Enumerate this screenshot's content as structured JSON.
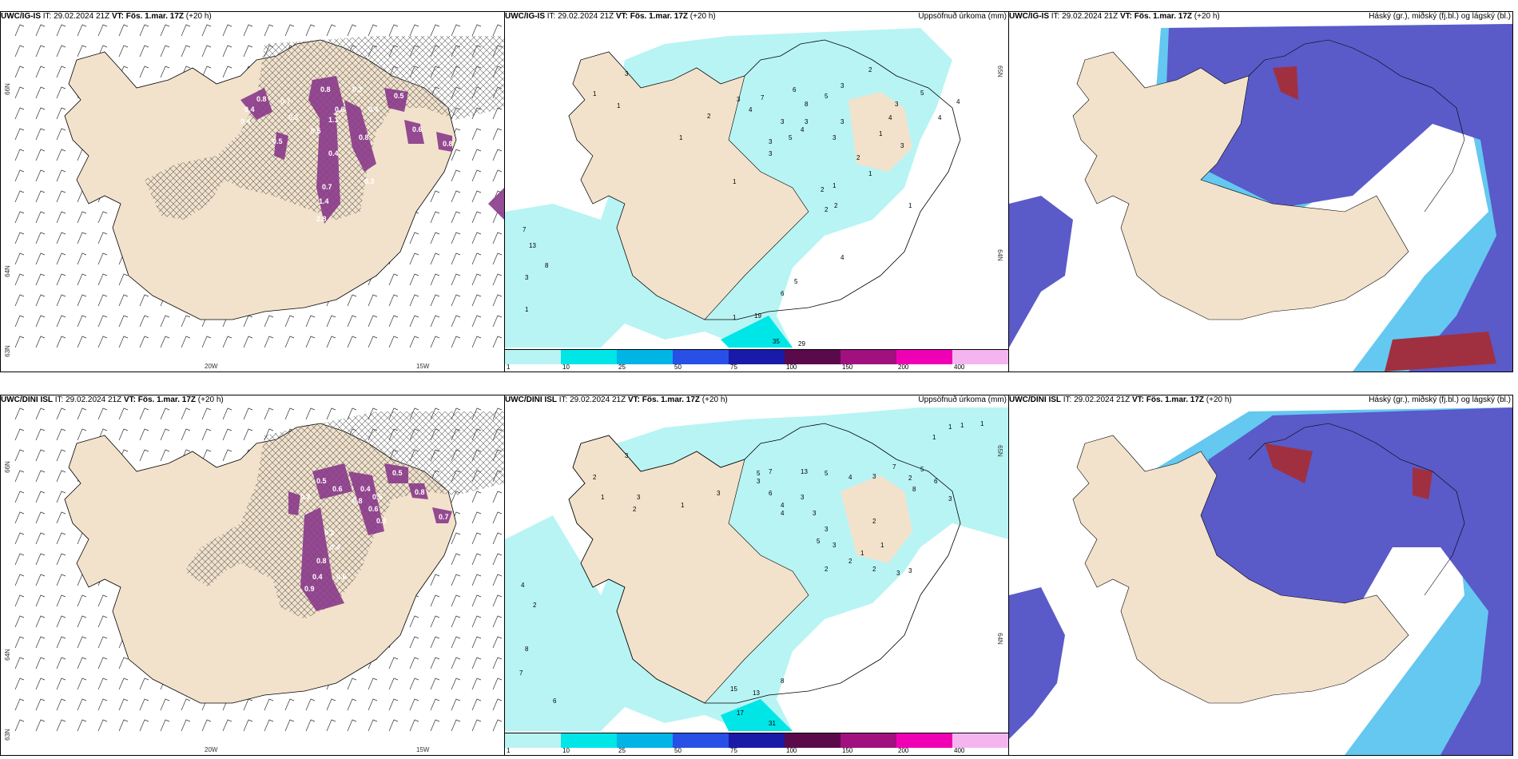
{
  "rows": [
    {
      "model": "UWC/IG-IS",
      "it_label": "IT:",
      "it_value": "29.02.2024 21Z",
      "vt_label": "VT:",
      "vt_value": "Fös. 1.mar. 17Z",
      "lead": "(+20 h)"
    },
    {
      "model": "UWC/DINI ISL",
      "it_label": "IT:",
      "it_value": "29.02.2024 21Z",
      "vt_label": "VT:",
      "vt_value": "Fös. 1.mar. 17Z",
      "lead": "(+20 h)"
    }
  ],
  "precip_title": "Uppsöfnuð úrkoma (mm)",
  "cloud_title": "Háský (gr.), miðský (fj.bl.) og lágský (bl.)",
  "axis_labels": {
    "lat_66": "66N",
    "lat_64": "64N",
    "lat_63": "63N",
    "lon_20": "20W",
    "lon_15": "15W",
    "lat_65_mid": "65N",
    "lat_64_mid": "64N"
  },
  "colorbar": {
    "labels": [
      "1",
      "10",
      "25",
      "50",
      "75",
      "100",
      "150",
      "200",
      "400"
    ],
    "colors": [
      "#b8f4f4",
      "#00e6e6",
      "#00b4e6",
      "#2850e6",
      "#1a1aa8",
      "#5a0a4a",
      "#a0107e",
      "#f000b4",
      "#f4b4f0"
    ]
  },
  "colors": {
    "land": "#f2e2cc",
    "precip_light": "#b8f4f4",
    "precip_mid": "#00e6e6",
    "cloud_high": "#5a5ac8",
    "cloud_mid": "#64c8f0",
    "cloud_low_red": "#a03040",
    "intense": "#8a3a8a"
  },
  "precip_numbers_top": [
    "3",
    "1",
    "1",
    "1",
    "2",
    "3",
    "4",
    "7",
    "6",
    "8",
    "5",
    "2",
    "3",
    "3",
    "5",
    "4",
    "4",
    "3",
    "3",
    "3",
    "3",
    "5",
    "4",
    "3",
    "1",
    "3",
    "3",
    "4",
    "2",
    "2",
    "1",
    "7",
    "13",
    "8",
    "3",
    "1",
    "5",
    "6",
    "19",
    "35",
    "29",
    "1",
    "2",
    "2",
    "1",
    "4",
    "1",
    "1"
  ],
  "precip_numbers_bottom": [
    "3",
    "2",
    "1",
    "2",
    "3",
    "1",
    "3",
    "3",
    "5",
    "7",
    "13",
    "5",
    "4",
    "3",
    "7",
    "2",
    "8",
    "5",
    "6",
    "3",
    "4",
    "6",
    "4",
    "3",
    "3",
    "3",
    "2",
    "1",
    "5",
    "3",
    "2",
    "2",
    "2",
    "1",
    "3",
    "3",
    "1",
    "1",
    "1",
    "1",
    "4",
    "2",
    "8",
    "7",
    "6",
    "8",
    "15",
    "13",
    "17",
    "31"
  ],
  "wind_numbers_top": [
    "0.4",
    "0.8",
    "0.7",
    "0.8",
    "1.1",
    "0.5",
    "0.6",
    "0.4",
    "0.3",
    "0.5",
    "0.4",
    "0.8",
    "0.6",
    "0.5",
    "0.4",
    "0.7",
    "0.3",
    "1.4",
    "2.8",
    "0.3",
    "0.8"
  ],
  "wind_numbers_bottom": [
    "0.5",
    "0.6",
    "0.8",
    "0.5",
    "0.8",
    "0.4",
    "0.6",
    "0.2",
    "0.7",
    "0.5",
    "0.4",
    "0.8",
    "0.4",
    "0.6",
    "0.9",
    "0.3",
    "0.2"
  ]
}
